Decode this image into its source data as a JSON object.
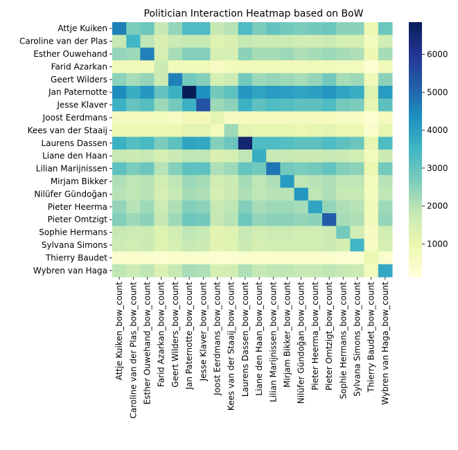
{
  "chart_data": {
    "type": "heatmap",
    "title": "Politician Interaction Heatmap based on BoW",
    "colormap": "YlGnBu",
    "colorbar": {
      "min": 130,
      "max": 6850,
      "ticks": [
        1000,
        2000,
        3000,
        4000,
        5000,
        6000
      ]
    },
    "rows": [
      "Attje Kuiken",
      "Caroline van der Plas",
      "Esther Ouwehand",
      "Farid Azarkan",
      "Geert Wilders",
      "Jan Paternotte",
      "Jesse Klaver",
      "Joost Eerdmans",
      "Kees van der Staaij",
      "Laurens Dassen",
      "Liane den Haan",
      "Lilian Marijnissen",
      "Mirjam Bikker",
      "Nilüfer Gündoğan",
      "Pieter Heerma",
      "Pieter Omtzigt",
      "Sophie Hermans",
      "Sylvana Simons",
      "Thierry Baudet",
      "Wybren van Haga"
    ],
    "columns": [
      "Attje Kuiken_bow_count",
      "Caroline van der Plas_bow_count",
      "Esther Ouwehand_bow_count",
      "Farid Azarkan_bow_count",
      "Geert Wilders_bow_count",
      "Jan Paternotte_bow_count",
      "Jesse Klaver_bow_count",
      "Joost Eerdmans_bow_count",
      "Kees van der Staaij_bow_count",
      "Laurens Dassen_bow_count",
      "Liane den Haan_bow_count",
      "Lilian Marijnissen_bow_count",
      "Mirjam Bikker_bow_count",
      "Nilüfer Gündoğan_bow_count",
      "Pieter Heerma_bow_count",
      "Pieter Omtzigt_bow_count",
      "Sophie Hermans_bow_count",
      "Sylvana Simons_bow_count",
      "Thierry Baudet_bow_count",
      "Wybren van Haga_bow_count"
    ],
    "values": [
      [
        4600,
        2700,
        2900,
        1800,
        2400,
        3300,
        3300,
        1800,
        2000,
        3300,
        2700,
        3000,
        2800,
        2700,
        2800,
        2900,
        2500,
        2500,
        1000,
        2900
      ],
      [
        1800,
        3500,
        1900,
        1400,
        1700,
        1800,
        1800,
        1300,
        1400,
        1800,
        1700,
        1700,
        1700,
        1600,
        1600,
        1700,
        1500,
        1500,
        700,
        1600
      ],
      [
        2400,
        2300,
        4600,
        1500,
        2200,
        2600,
        2600,
        1500,
        1500,
        2500,
        2200,
        2200,
        2300,
        2100,
        2200,
        2300,
        2200,
        2100,
        900,
        2200
      ],
      [
        800,
        800,
        800,
        1700,
        800,
        800,
        800,
        600,
        700,
        800,
        800,
        800,
        800,
        800,
        800,
        800,
        700,
        700,
        300,
        800
      ],
      [
        2500,
        2200,
        2400,
        1700,
        4600,
        2800,
        2600,
        1500,
        1700,
        2800,
        2300,
        2400,
        2300,
        2200,
        2400,
        2800,
        2200,
        2300,
        800,
        2500
      ],
      [
        4400,
        3700,
        4200,
        3000,
        3600,
        6850,
        4300,
        2800,
        3100,
        4200,
        3900,
        4100,
        4000,
        3900,
        4000,
        4200,
        3900,
        3700,
        1300,
        4100
      ],
      [
        3600,
        3000,
        3200,
        2300,
        2800,
        3600,
        5400,
        2300,
        2500,
        3600,
        3100,
        3300,
        3200,
        3100,
        3100,
        3300,
        2800,
        2700,
        1100,
        3100
      ],
      [
        700,
        700,
        700,
        700,
        600,
        800,
        800,
        1200,
        600,
        700,
        700,
        700,
        700,
        700,
        700,
        700,
        600,
        600,
        300,
        700
      ],
      [
        1000,
        1000,
        1000,
        1000,
        1000,
        1200,
        1200,
        700,
        2300,
        1200,
        1100,
        1100,
        1100,
        1000,
        1100,
        1200,
        1000,
        1000,
        400,
        1100
      ],
      [
        3600,
        3200,
        3400,
        2700,
        3100,
        3900,
        3800,
        2600,
        2900,
        6500,
        3300,
        3300,
        3200,
        3100,
        3100,
        3300,
        3100,
        2900,
        1100,
        3300
      ],
      [
        1800,
        1700,
        1800,
        1500,
        1700,
        1900,
        1900,
        1400,
        1500,
        1900,
        3700,
        1800,
        1800,
        1700,
        1700,
        1800,
        1700,
        1600,
        700,
        1700
      ],
      [
        3100,
        2700,
        2900,
        2000,
        2600,
        3100,
        3100,
        2100,
        2300,
        3000,
        2800,
        4800,
        2800,
        2700,
        2800,
        3000,
        2600,
        2500,
        1000,
        2800
      ],
      [
        2100,
        1900,
        2000,
        1600,
        1900,
        2300,
        2200,
        1600,
        1700,
        2200,
        1900,
        2100,
        4100,
        1900,
        2000,
        2100,
        1900,
        1900,
        700,
        2000
      ],
      [
        2000,
        1900,
        2000,
        1500,
        1800,
        2200,
        2100,
        1500,
        1700,
        2100,
        1900,
        2000,
        2000,
        4200,
        1900,
        2100,
        1800,
        1800,
        700,
        1900
      ],
      [
        2400,
        2000,
        2300,
        1700,
        2100,
        2600,
        2500,
        1800,
        1900,
        2600,
        2200,
        2300,
        2300,
        2200,
        3900,
        2400,
        2100,
        2000,
        800,
        2300
      ],
      [
        2600,
        2300,
        2500,
        1800,
        2300,
        2900,
        2800,
        1800,
        2000,
        2900,
        2400,
        2500,
        2500,
        2400,
        2500,
        5200,
        2200,
        2100,
        800,
        2400
      ],
      [
        1800,
        1700,
        1700,
        1300,
        1600,
        1900,
        1800,
        1200,
        1300,
        1800,
        1600,
        1700,
        1700,
        1600,
        1600,
        1700,
        2800,
        1600,
        600,
        1600
      ],
      [
        1700,
        1600,
        1700,
        1300,
        1500,
        1800,
        1700,
        1200,
        1300,
        1700,
        1500,
        1600,
        1600,
        1600,
        1600,
        1700,
        1500,
        3500,
        600,
        1500
      ],
      [
        400,
        400,
        400,
        300,
        400,
        400,
        400,
        300,
        300,
        400,
        400,
        400,
        400,
        400,
        400,
        400,
        300,
        300,
        1000,
        400
      ],
      [
        1900,
        1700,
        1900,
        1400,
        1800,
        2200,
        2100,
        1500,
        1600,
        2100,
        1800,
        1900,
        1900,
        1800,
        1800,
        1900,
        1800,
        1700,
        700,
        3800
      ]
    ]
  }
}
